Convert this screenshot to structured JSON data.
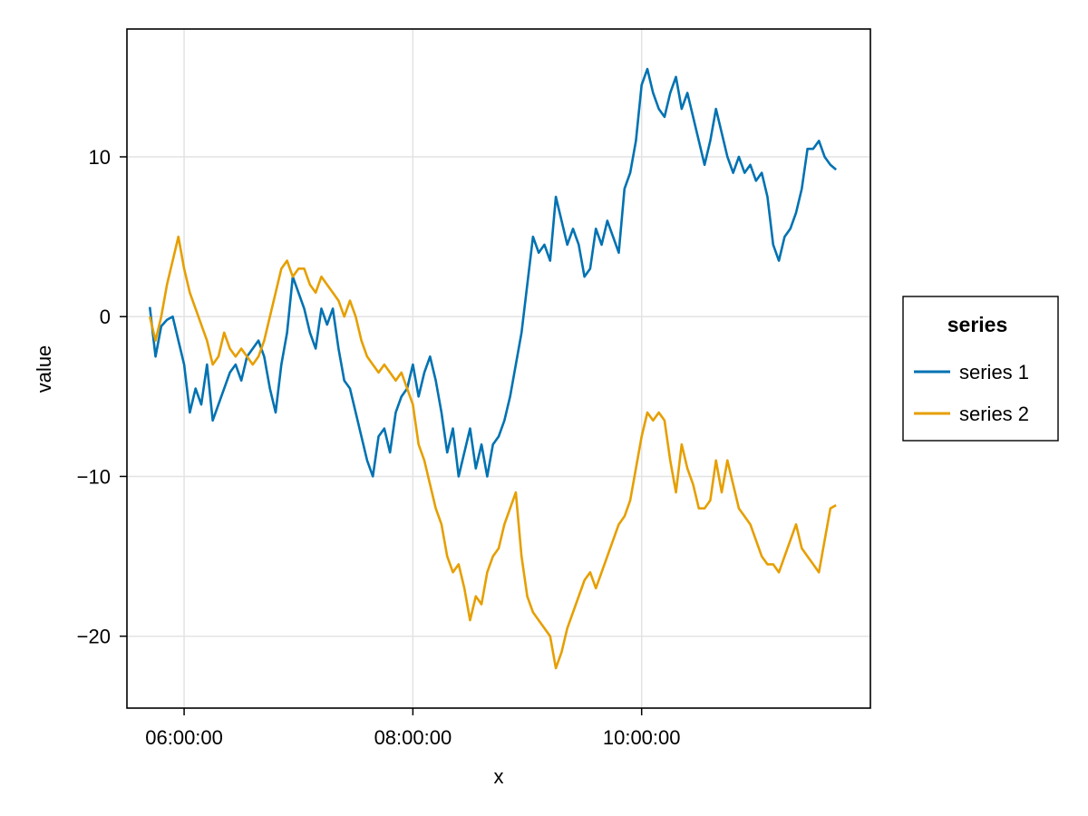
{
  "chart_data": {
    "type": "line",
    "title": "",
    "xlabel": "x",
    "ylabel": "value",
    "x_range": [
      "05:42:00",
      "11:42:00"
    ],
    "xlim": [
      "05:30:00",
      "12:00:00"
    ],
    "ylim": [
      -24.5,
      18
    ],
    "x_ticks": [
      "06:00:00",
      "08:00:00",
      "10:00:00"
    ],
    "y_ticks": [
      -20,
      -10,
      0,
      10
    ],
    "y_tick_labels": [
      "−20",
      "−10",
      "0",
      "10"
    ],
    "grid": true,
    "legend": {
      "title": "series",
      "position": "right"
    },
    "series": [
      {
        "name": "series 1",
        "color": "#0072b2",
        "keypoints": [
          [
            "05:42:00",
            0.6
          ],
          [
            "05:45:00",
            -2.5
          ],
          [
            "05:48:00",
            -0.6
          ],
          [
            "05:51:00",
            -0.2
          ],
          [
            "05:54:00",
            0
          ],
          [
            "05:57:00",
            -1.5
          ],
          [
            "06:00:00",
            -3
          ],
          [
            "06:03:00",
            -6
          ],
          [
            "06:06:00",
            -4.5
          ],
          [
            "06:09:00",
            -5.5
          ],
          [
            "06:12:00",
            -3
          ],
          [
            "06:15:00",
            -6.5
          ],
          [
            "06:18:00",
            -5.5
          ],
          [
            "06:21:00",
            -4.5
          ],
          [
            "06:24:00",
            -3.5
          ],
          [
            "06:27:00",
            -3
          ],
          [
            "06:30:00",
            -4
          ],
          [
            "06:33:00",
            -2.5
          ],
          [
            "06:36:00",
            -2
          ],
          [
            "06:39:00",
            -1.5
          ],
          [
            "06:42:00",
            -2.5
          ],
          [
            "06:45:00",
            -4.5
          ],
          [
            "06:48:00",
            -6
          ],
          [
            "06:51:00",
            -3
          ],
          [
            "06:54:00",
            -1
          ],
          [
            "06:57:00",
            2.5
          ],
          [
            "07:00:00",
            1.5
          ],
          [
            "07:03:00",
            0.5
          ],
          [
            "07:06:00",
            -1
          ],
          [
            "07:09:00",
            -2
          ],
          [
            "07:12:00",
            0.5
          ],
          [
            "07:15:00",
            -0.5
          ],
          [
            "07:18:00",
            0.5
          ],
          [
            "07:21:00",
            -2
          ],
          [
            "07:24:00",
            -4
          ],
          [
            "07:27:00",
            -4.5
          ],
          [
            "07:30:00",
            -6
          ],
          [
            "07:33:00",
            -7.5
          ],
          [
            "07:36:00",
            -9
          ],
          [
            "07:39:00",
            -10
          ],
          [
            "07:42:00",
            -7.5
          ],
          [
            "07:45:00",
            -7
          ],
          [
            "07:48:00",
            -8.5
          ],
          [
            "07:51:00",
            -6
          ],
          [
            "07:54:00",
            -5
          ],
          [
            "07:57:00",
            -4.5
          ],
          [
            "08:00:00",
            -3
          ],
          [
            "08:03:00",
            -5
          ],
          [
            "08:06:00",
            -3.5
          ],
          [
            "08:09:00",
            -2.5
          ],
          [
            "08:12:00",
            -4
          ],
          [
            "08:15:00",
            -6
          ],
          [
            "08:18:00",
            -8.5
          ],
          [
            "08:21:00",
            -7
          ],
          [
            "08:24:00",
            -10
          ],
          [
            "08:27:00",
            -8.5
          ],
          [
            "08:30:00",
            -7
          ],
          [
            "08:33:00",
            -9.5
          ],
          [
            "08:36:00",
            -8
          ],
          [
            "08:39:00",
            -10
          ],
          [
            "08:42:00",
            -8
          ],
          [
            "08:45:00",
            -7.5
          ],
          [
            "08:48:00",
            -6.5
          ],
          [
            "08:51:00",
            -5
          ],
          [
            "08:54:00",
            -3
          ],
          [
            "08:57:00",
            -1
          ],
          [
            "09:00:00",
            2
          ],
          [
            "09:03:00",
            5
          ],
          [
            "09:06:00",
            4
          ],
          [
            "09:09:00",
            4.5
          ],
          [
            "09:12:00",
            3.5
          ],
          [
            "09:15:00",
            7.5
          ],
          [
            "09:18:00",
            6
          ],
          [
            "09:21:00",
            4.5
          ],
          [
            "09:24:00",
            5.5
          ],
          [
            "09:27:00",
            4.5
          ],
          [
            "09:30:00",
            2.5
          ],
          [
            "09:33:00",
            3
          ],
          [
            "09:36:00",
            5.5
          ],
          [
            "09:39:00",
            4.5
          ],
          [
            "09:42:00",
            6
          ],
          [
            "09:45:00",
            5
          ],
          [
            "09:48:00",
            4
          ],
          [
            "09:51:00",
            8
          ],
          [
            "09:54:00",
            9
          ],
          [
            "09:57:00",
            11
          ],
          [
            "10:00:00",
            14.5
          ],
          [
            "10:03:00",
            15.5
          ],
          [
            "10:06:00",
            14
          ],
          [
            "10:09:00",
            13
          ],
          [
            "10:12:00",
            12.5
          ],
          [
            "10:15:00",
            14
          ],
          [
            "10:18:00",
            15
          ],
          [
            "10:21:00",
            13
          ],
          [
            "10:24:00",
            14
          ],
          [
            "10:27:00",
            12.5
          ],
          [
            "10:30:00",
            11
          ],
          [
            "10:33:00",
            9.5
          ],
          [
            "10:36:00",
            11
          ],
          [
            "10:39:00",
            13
          ],
          [
            "10:42:00",
            11.5
          ],
          [
            "10:45:00",
            10
          ],
          [
            "10:48:00",
            9
          ],
          [
            "10:51:00",
            10
          ],
          [
            "10:54:00",
            9
          ],
          [
            "10:57:00",
            9.5
          ],
          [
            "11:00:00",
            8.5
          ],
          [
            "11:03:00",
            9
          ],
          [
            "11:06:00",
            7.5
          ],
          [
            "11:09:00",
            4.5
          ],
          [
            "11:12:00",
            3.5
          ],
          [
            "11:15:00",
            5
          ],
          [
            "11:18:00",
            5.5
          ],
          [
            "11:21:00",
            6.5
          ],
          [
            "11:24:00",
            8
          ],
          [
            "11:27:00",
            10.5
          ],
          [
            "11:30:00",
            10.5
          ],
          [
            "11:33:00",
            11
          ],
          [
            "11:36:00",
            10
          ],
          [
            "11:39:00",
            9.5
          ],
          [
            "11:42:00",
            9.2
          ]
        ]
      },
      {
        "name": "series 2",
        "color": "#e69f00",
        "keypoints": [
          [
            "05:42:00",
            0
          ],
          [
            "05:45:00",
            -1.5
          ],
          [
            "05:48:00",
            0
          ],
          [
            "05:51:00",
            2
          ],
          [
            "05:54:00",
            3.5
          ],
          [
            "05:57:00",
            5
          ],
          [
            "06:00:00",
            3
          ],
          [
            "06:03:00",
            1.5
          ],
          [
            "06:06:00",
            0.5
          ],
          [
            "06:09:00",
            -0.5
          ],
          [
            "06:12:00",
            -1.5
          ],
          [
            "06:15:00",
            -3
          ],
          [
            "06:18:00",
            -2.5
          ],
          [
            "06:21:00",
            -1
          ],
          [
            "06:24:00",
            -2
          ],
          [
            "06:27:00",
            -2.5
          ],
          [
            "06:30:00",
            -2
          ],
          [
            "06:33:00",
            -2.5
          ],
          [
            "06:36:00",
            -3
          ],
          [
            "06:39:00",
            -2.5
          ],
          [
            "06:42:00",
            -1.5
          ],
          [
            "06:45:00",
            0
          ],
          [
            "06:48:00",
            1.5
          ],
          [
            "06:51:00",
            3
          ],
          [
            "06:54:00",
            3.5
          ],
          [
            "06:57:00",
            2.5
          ],
          [
            "07:00:00",
            3
          ],
          [
            "07:03:00",
            3
          ],
          [
            "07:06:00",
            2
          ],
          [
            "07:09:00",
            1.5
          ],
          [
            "07:12:00",
            2.5
          ],
          [
            "07:15:00",
            2
          ],
          [
            "07:18:00",
            1.5
          ],
          [
            "07:21:00",
            1
          ],
          [
            "07:24:00",
            0
          ],
          [
            "07:27:00",
            1
          ],
          [
            "07:30:00",
            0
          ],
          [
            "07:33:00",
            -1.5
          ],
          [
            "07:36:00",
            -2.5
          ],
          [
            "07:39:00",
            -3
          ],
          [
            "07:42:00",
            -3.5
          ],
          [
            "07:45:00",
            -3
          ],
          [
            "07:48:00",
            -3.5
          ],
          [
            "07:51:00",
            -4
          ],
          [
            "07:54:00",
            -3.5
          ],
          [
            "07:57:00",
            -4.5
          ],
          [
            "08:00:00",
            -5.5
          ],
          [
            "08:03:00",
            -8
          ],
          [
            "08:06:00",
            -9
          ],
          [
            "08:09:00",
            -10.5
          ],
          [
            "08:12:00",
            -12
          ],
          [
            "08:15:00",
            -13
          ],
          [
            "08:18:00",
            -15
          ],
          [
            "08:21:00",
            -16
          ],
          [
            "08:24:00",
            -15.5
          ],
          [
            "08:27:00",
            -17
          ],
          [
            "08:30:00",
            -19
          ],
          [
            "08:33:00",
            -17.5
          ],
          [
            "08:36:00",
            -18
          ],
          [
            "08:39:00",
            -16
          ],
          [
            "08:42:00",
            -15
          ],
          [
            "08:45:00",
            -14.5
          ],
          [
            "08:48:00",
            -13
          ],
          [
            "08:51:00",
            -12
          ],
          [
            "08:54:00",
            -11
          ],
          [
            "08:57:00",
            -15
          ],
          [
            "09:00:00",
            -17.5
          ],
          [
            "09:03:00",
            -18.5
          ],
          [
            "09:06:00",
            -19
          ],
          [
            "09:09:00",
            -19.5
          ],
          [
            "09:12:00",
            -20
          ],
          [
            "09:15:00",
            -22
          ],
          [
            "09:18:00",
            -21
          ],
          [
            "09:21:00",
            -19.5
          ],
          [
            "09:24:00",
            -18.5
          ],
          [
            "09:27:00",
            -17.5
          ],
          [
            "09:30:00",
            -16.5
          ],
          [
            "09:33:00",
            -16
          ],
          [
            "09:36:00",
            -17
          ],
          [
            "09:39:00",
            -16
          ],
          [
            "09:42:00",
            -15
          ],
          [
            "09:45:00",
            -14
          ],
          [
            "09:48:00",
            -13
          ],
          [
            "09:51:00",
            -12.5
          ],
          [
            "09:54:00",
            -11.5
          ],
          [
            "09:57:00",
            -9.5
          ],
          [
            "10:00:00",
            -7.5
          ],
          [
            "10:03:00",
            -6
          ],
          [
            "10:06:00",
            -6.5
          ],
          [
            "10:09:00",
            -6
          ],
          [
            "10:12:00",
            -6.5
          ],
          [
            "10:15:00",
            -9
          ],
          [
            "10:18:00",
            -11
          ],
          [
            "10:21:00",
            -8
          ],
          [
            "10:24:00",
            -9.5
          ],
          [
            "10:27:00",
            -10.5
          ],
          [
            "10:30:00",
            -12
          ],
          [
            "10:33:00",
            -12
          ],
          [
            "10:36:00",
            -11.5
          ],
          [
            "10:39:00",
            -9
          ],
          [
            "10:42:00",
            -11
          ],
          [
            "10:45:00",
            -9
          ],
          [
            "10:48:00",
            -10.5
          ],
          [
            "10:51:00",
            -12
          ],
          [
            "10:54:00",
            -12.5
          ],
          [
            "10:57:00",
            -13
          ],
          [
            "11:00:00",
            -14
          ],
          [
            "11:03:00",
            -15
          ],
          [
            "11:06:00",
            -15.5
          ],
          [
            "11:09:00",
            -15.5
          ],
          [
            "11:12:00",
            -16
          ],
          [
            "11:15:00",
            -15
          ],
          [
            "11:18:00",
            -14
          ],
          [
            "11:21:00",
            -13
          ],
          [
            "11:24:00",
            -14.5
          ],
          [
            "11:27:00",
            -15
          ],
          [
            "11:30:00",
            -15.5
          ],
          [
            "11:33:00",
            -16
          ],
          [
            "11:36:00",
            -14
          ],
          [
            "11:39:00",
            -12
          ],
          [
            "11:42:00",
            -11.8
          ]
        ]
      }
    ]
  }
}
